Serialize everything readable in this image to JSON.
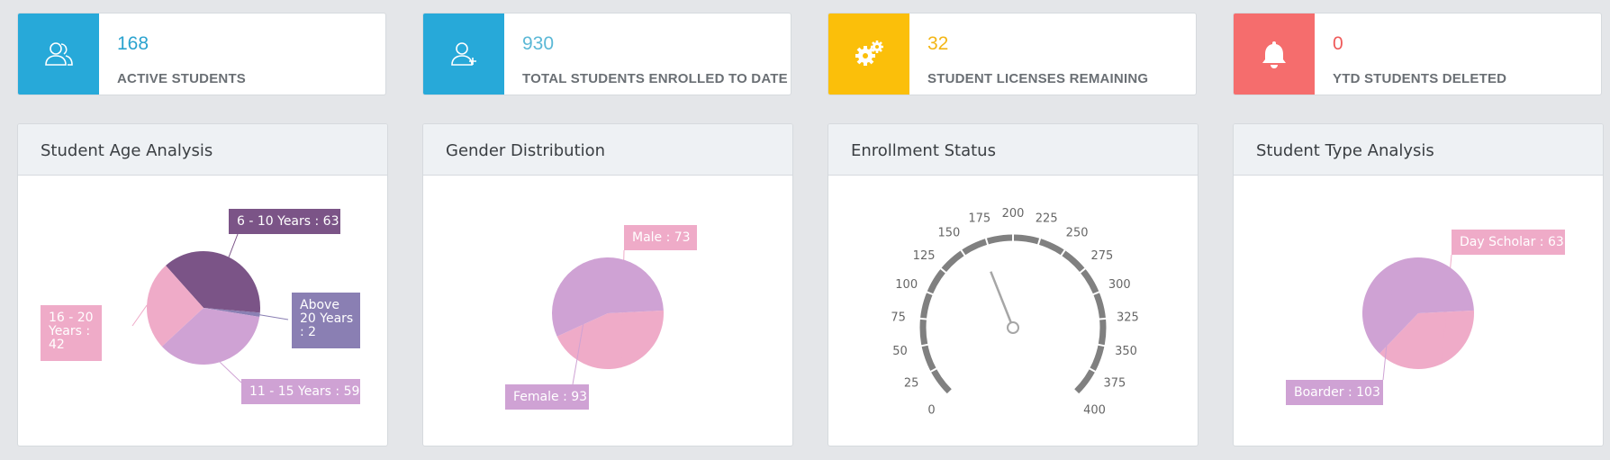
{
  "stats": [
    {
      "value": "168",
      "label": "ACTIVE STUDENTS",
      "icon": "users-icon",
      "icon_bg": "#27a9d9",
      "value_color": "#2ba3cf"
    },
    {
      "value": "930",
      "label": "TOTAL STUDENTS ENROLLED TO DATE",
      "icon": "user-add-icon",
      "icon_bg": "#27a9d9",
      "value_color": "#5bb8d6"
    },
    {
      "value": "32",
      "label": "STUDENT LICENSES REMAINING",
      "icon": "gears-icon",
      "icon_bg": "#fbbf0a",
      "value_color": "#f3b616"
    },
    {
      "value": "0",
      "label": "YTD STUDENTS DELETED",
      "icon": "bell-icon",
      "icon_bg": "#f56d6d",
      "value_color": "#ef5a5a"
    }
  ],
  "panels": {
    "age": {
      "title": "Student Age Analysis"
    },
    "gender": {
      "title": "Gender Distribution"
    },
    "enrollment": {
      "title": "Enrollment Status"
    },
    "type": {
      "title": "Student Type Analysis"
    }
  },
  "chart_data": [
    {
      "type": "pie",
      "title": "Student Age Analysis",
      "categories": [
        "6 - 10 Years",
        "Above 20 Years",
        "11 - 15 Years",
        "16 - 20 Years"
      ],
      "values": [
        63,
        2,
        59,
        42
      ],
      "labels": [
        "6 - 10 Years : 63",
        "Above 20 Years : 2",
        "11 - 15 Years : 59",
        "16 - 20 Years : 42"
      ],
      "colors": [
        "#7b5487",
        "#8a7fb3",
        "#cfa2d4",
        "#efabc8"
      ]
    },
    {
      "type": "pie",
      "title": "Gender Distribution",
      "categories": [
        "Male",
        "Female"
      ],
      "values": [
        73,
        93
      ],
      "labels": [
        "Male : 73",
        "Female : 93"
      ],
      "colors": [
        "#efabc8",
        "#cfa2d4"
      ]
    },
    {
      "type": "gauge",
      "title": "Enrollment Status",
      "range": [
        0,
        400
      ],
      "ticks": [
        0,
        25,
        50,
        75,
        100,
        125,
        150,
        175,
        200,
        225,
        250,
        275,
        300,
        325,
        350,
        375,
        400
      ],
      "value": 168
    },
    {
      "type": "pie",
      "title": "Student Type Analysis",
      "categories": [
        "Day Scholar",
        "Boarder"
      ],
      "values": [
        63,
        103
      ],
      "labels": [
        "Day Scholar : 63",
        "Boarder : 103"
      ],
      "colors": [
        "#efabc8",
        "#cfa2d4"
      ]
    }
  ]
}
